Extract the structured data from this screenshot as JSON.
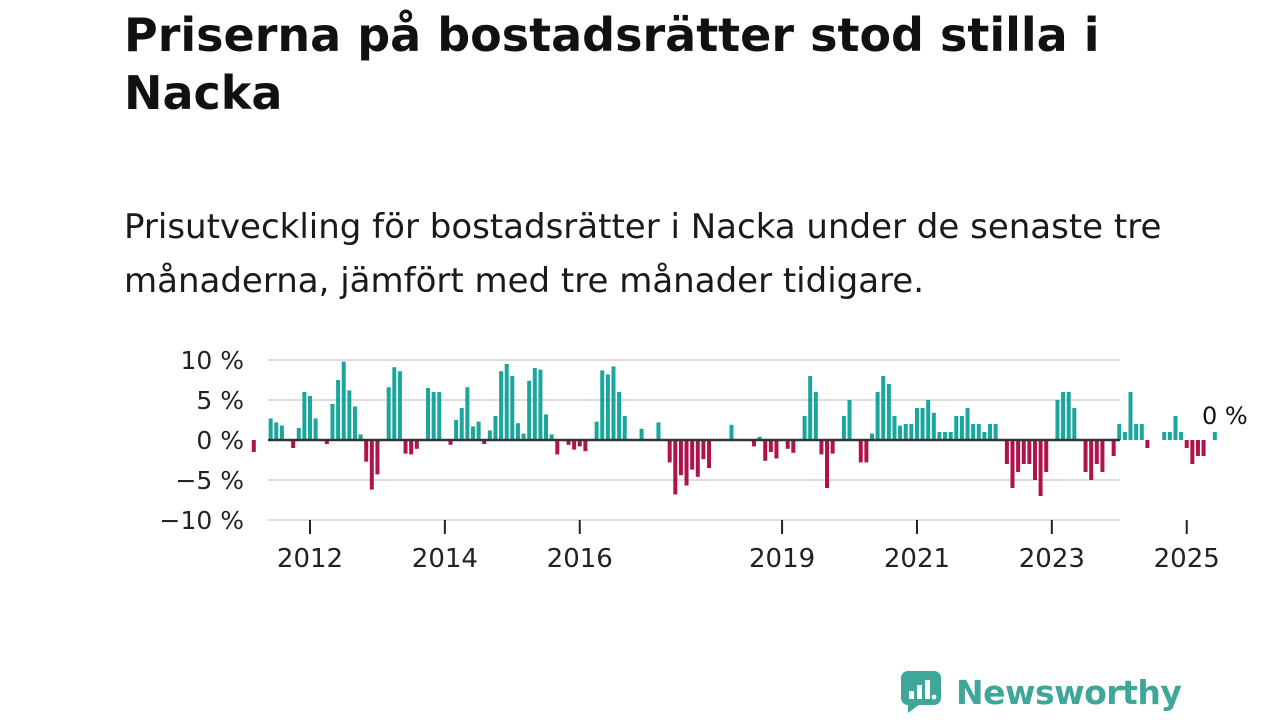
{
  "header": {
    "title": "Priserna på bostadsrätter stod stilla i Nacka",
    "subtitle": "Prisutveckling för bostadsrätter i Nacka under de senaste tre månaderna, jämfört med tre månader tidigare."
  },
  "brand": {
    "name": "Newsworthy"
  },
  "colors": {
    "positive": "#1aa69b",
    "negative": "#b0134a",
    "zero_line": "#333333",
    "grid": "#dddddd",
    "text": "#222222",
    "brand": "#3ea79a"
  },
  "chart_data": {
    "type": "bar",
    "title": "Priserna på bostadsrätter stod stilla i Nacka",
    "subtitle": "Prisutveckling för bostadsrätter i Nacka under de senaste tre månaderna, jämfört med tre månader tidigare.",
    "xlabel": "",
    "ylabel": "",
    "ylim": [
      -10,
      10
    ],
    "y_ticks": [
      "10 %",
      "5 %",
      "0 %",
      "−5 %",
      "−10 %"
    ],
    "y_tick_values": [
      10,
      5,
      0,
      -5,
      -10
    ],
    "x_ticks": [
      "2012",
      "2014",
      "2016",
      "2019",
      "2021",
      "2023",
      "2025"
    ],
    "x_tick_years": [
      2012,
      2014,
      2016,
      2019,
      2021,
      2023,
      2025
    ],
    "grid": true,
    "start_year": 2011,
    "start_month": 3,
    "series": [
      {
        "name": "Prisutveckling (%)",
        "values": [
          -1.5,
          null,
          0,
          2.7,
          2.2,
          1.8,
          0,
          -1,
          1.5,
          6,
          5.5,
          2.7,
          0,
          -0.5,
          4.5,
          7.5,
          9.8,
          6.2,
          4.2,
          0.7,
          -2.7,
          -6.2,
          -4.3,
          0,
          6.6,
          9.1,
          8.6,
          -1.7,
          -1.8,
          -1.1,
          0,
          6.5,
          6,
          6,
          0,
          -0.6,
          2.5,
          4,
          6.6,
          1.7,
          2.3,
          -0.5,
          1.2,
          3,
          8.6,
          9.5,
          8,
          2.1,
          0.8,
          7.4,
          9,
          8.8,
          3.2,
          0.7,
          -1.8,
          0,
          -0.6,
          -1.2,
          -0.8,
          -1.4,
          0,
          2.3,
          8.7,
          8.2,
          9.2,
          6,
          3,
          0,
          0,
          1.4,
          0,
          0,
          2.2,
          0,
          -2.8,
          -6.8,
          -4.4,
          -5.7,
          -3.7,
          -4.6,
          -2.4,
          -3.5,
          0,
          0,
          0,
          1.9,
          0,
          0,
          0,
          -0.8,
          0.4,
          -2.6,
          -1.5,
          -2.3,
          0,
          -1.1,
          -1.6,
          0,
          3,
          8,
          6,
          -1.8,
          -6,
          -1.7,
          0,
          3,
          5,
          0,
          -2.8,
          -2.8,
          0.8,
          6,
          8,
          7,
          3,
          1.8,
          2,
          2,
          4,
          4,
          5,
          3.4,
          1,
          1,
          1,
          3,
          3,
          4,
          2,
          2,
          1,
          2,
          2,
          0,
          -3,
          -6,
          -4,
          -3,
          -3,
          -5,
          -7,
          -4,
          0,
          5,
          6,
          6,
          4,
          0,
          -4,
          -5,
          -3,
          -4,
          0,
          -2,
          2,
          1,
          6,
          2,
          2,
          -1,
          0,
          0,
          1,
          1,
          3,
          1,
          -1,
          -3,
          -2,
          -2,
          0,
          1
        ]
      }
    ],
    "annotations": [
      {
        "text": "0 %",
        "value": 0
      }
    ]
  }
}
